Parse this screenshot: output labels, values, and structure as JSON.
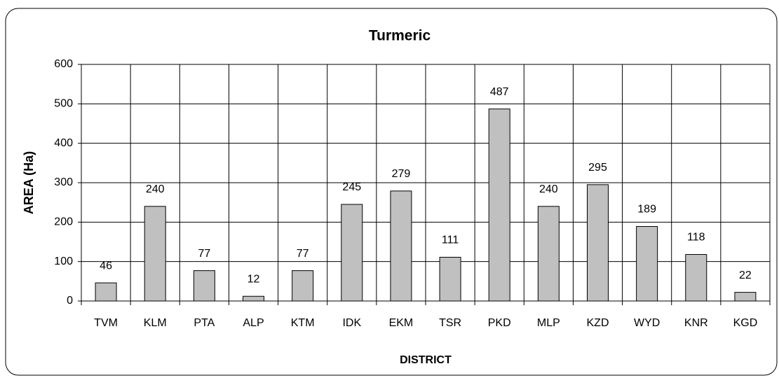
{
  "chart_data": {
    "type": "bar",
    "title": "Turmeric",
    "x_label": "DISTRICT",
    "y_label": "AREA (Ha)",
    "categories": [
      "TVM",
      "KLM",
      "PTA",
      "ALP",
      "KTM",
      "IDK",
      "EKM",
      "TSR",
      "PKD",
      "MLP",
      "KZD",
      "WYD",
      "KNR",
      "KGD"
    ],
    "values": [
      46,
      240,
      77,
      12,
      77,
      245,
      279,
      111,
      487,
      240,
      295,
      189,
      118,
      22
    ],
    "color": "#c0c0c0",
    "ylim": [
      0,
      600
    ],
    "yticks": [
      0,
      100,
      200,
      300,
      400,
      500,
      600
    ],
    "grid": true
  }
}
